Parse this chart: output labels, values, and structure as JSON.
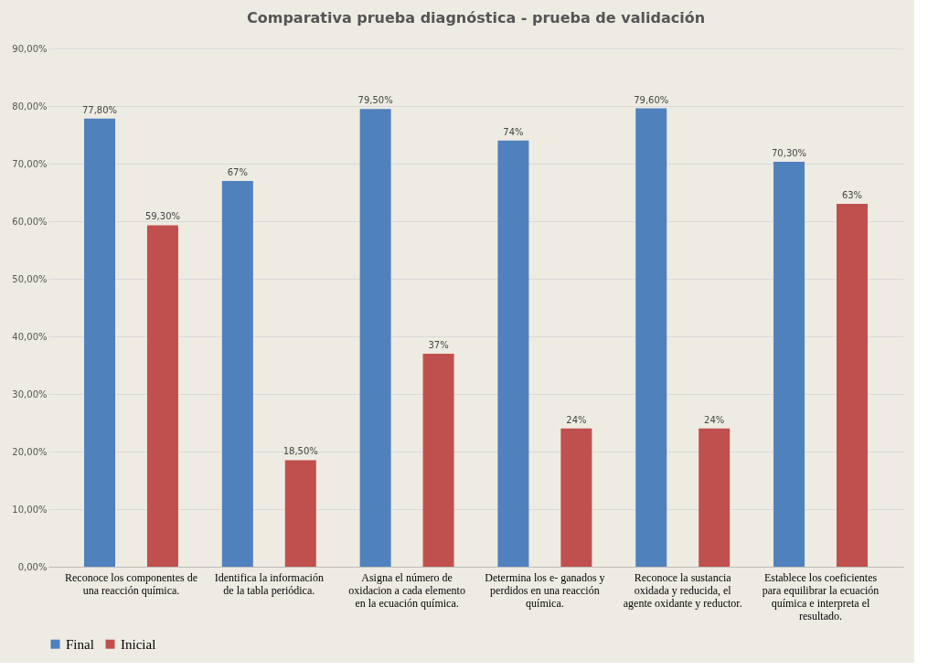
{
  "chart_data": {
    "type": "bar",
    "title": "Comparativa prueba diagnóstica - prueba de validación",
    "categories": [
      "Reconoce los componentes de una reacción química.",
      "Identifica la información de la tabla periódica.",
      "Asigna el número de oxidacion a cada elemento en la ecuación química.",
      "Determina los e- ganados y perdidos en una reacción química.",
      "Reconoce la sustancia oxidada y reducida, el agente oxidante y reductor.",
      "Establece los coeficientes para equilibrar la ecuación química e interpreta el resultado."
    ],
    "series": [
      {
        "name": "Final",
        "color": "#4f81bd",
        "values": [
          77.8,
          67,
          79.5,
          74,
          79.6,
          70.3
        ],
        "value_labels": [
          "77,80%",
          "67%",
          "79,50%",
          "74%",
          "79,60%",
          "70,30%"
        ]
      },
      {
        "name": "Inicial",
        "color": "#c0504d",
        "values": [
          59.3,
          18.5,
          37,
          24,
          24,
          63
        ],
        "value_labels": [
          "59,30%",
          "18,50%",
          "37%",
          "24%",
          "24%",
          "63%"
        ]
      }
    ],
    "ylim": [
      0,
      90
    ],
    "yticks": [
      {
        "value": 0,
        "label": "0,00%"
      },
      {
        "value": 10,
        "label": "10,00%"
      },
      {
        "value": 20,
        "label": "20,00%"
      },
      {
        "value": 30,
        "label": "30,00%"
      },
      {
        "value": 40,
        "label": "40,00%"
      },
      {
        "value": 50,
        "label": "50,00%"
      },
      {
        "value": 60,
        "label": "60,00%"
      },
      {
        "value": 70,
        "label": "70,00%"
      },
      {
        "value": 80,
        "label": "80,00%"
      },
      {
        "value": 90,
        "label": "90,00%"
      }
    ],
    "grid": "y",
    "legend": "bottom"
  }
}
